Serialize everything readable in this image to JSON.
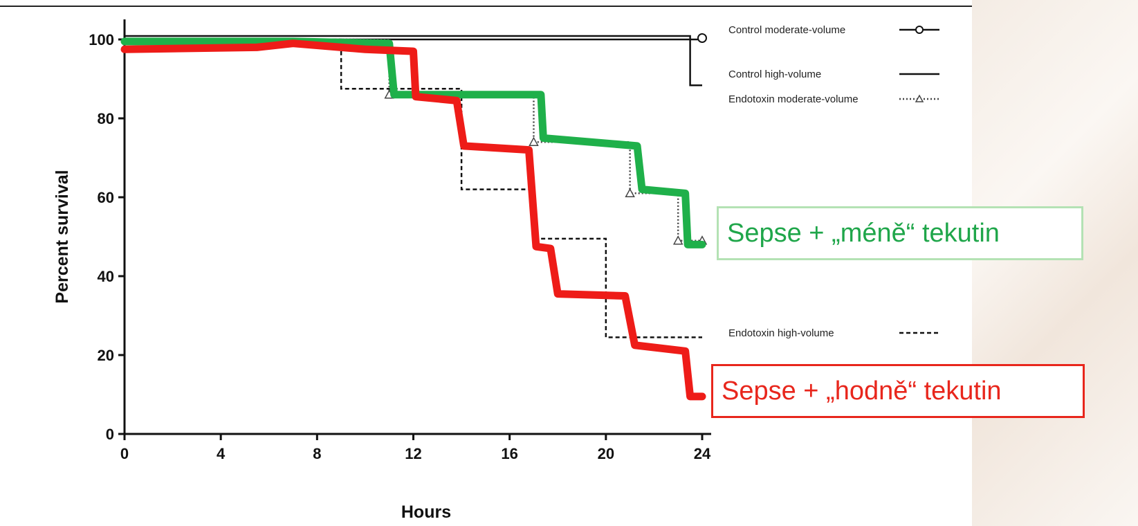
{
  "chart_data": {
    "type": "line",
    "step": true,
    "xlabel": "Hours",
    "ylabel": "Percent survival",
    "xlim": [
      0,
      24
    ],
    "ylim": [
      0,
      100
    ],
    "xticks": [
      "0",
      "4",
      "8",
      "12",
      "16",
      "20",
      "24"
    ],
    "yticks": [
      "0",
      "20",
      "40",
      "60",
      "80",
      "100"
    ],
    "grid": false,
    "legend_position": "right",
    "series": [
      {
        "name": "Control moderate-volume",
        "style": "solid-circle",
        "color": "#111111",
        "x": [
          0,
          24
        ],
        "y": [
          100,
          100
        ]
      },
      {
        "name": "Control high-volume",
        "style": "solid",
        "color": "#111111",
        "x": [
          0,
          23.5,
          24
        ],
        "y": [
          100,
          87.5,
          87.5
        ]
      },
      {
        "name": "Endotoxin moderate-volume",
        "style": "dotted-triangle",
        "color": "#444444",
        "x": [
          0,
          11,
          17,
          21,
          23,
          24
        ],
        "y": [
          100,
          86,
          74,
          61,
          49,
          49
        ]
      },
      {
        "name": "Endotoxin high-volume",
        "style": "dashed",
        "color": "#111111",
        "x": [
          0,
          9,
          14,
          17,
          20,
          24
        ],
        "y": [
          100,
          87.5,
          62,
          49.5,
          24.5,
          24.5
        ]
      }
    ],
    "overlays": [
      {
        "label": "Sepse + „méně“ tekutin",
        "color": "#1fb04a",
        "x": [
          0,
          7,
          11,
          11.2,
          17.3,
          17.4,
          21.3,
          21.5,
          23.3,
          23.4,
          24
        ],
        "y": [
          99.5,
          99.5,
          99,
          86,
          86,
          75,
          73,
          62,
          61,
          48,
          48
        ]
      },
      {
        "label": "Sepse + „hodně“ tekutin",
        "color": "#ee1c18",
        "x": [
          0,
          5.5,
          7,
          10,
          12,
          12.1,
          13.8,
          14.1,
          16.8,
          17.1,
          17.7,
          18,
          20.8,
          21.2,
          23.3,
          23.5,
          24
        ],
        "y": [
          97.5,
          98,
          99,
          97.5,
          97,
          85.5,
          84.5,
          73,
          72,
          47.5,
          47,
          35.5,
          35,
          22.5,
          21,
          9.5,
          9.5
        ]
      }
    ]
  }
}
